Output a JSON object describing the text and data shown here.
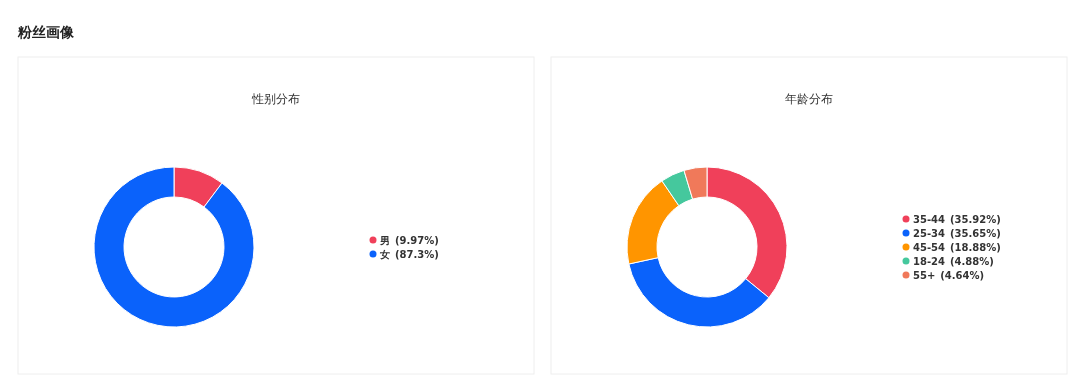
{
  "chart_data": [
    {
      "type": "other",
      "title": "粉丝画像"
    },
    {
      "type": "donut",
      "title": "性别分布",
      "categories": [
        "男",
        "女"
      ],
      "values": [
        9.97,
        87.3
      ],
      "value_labels": [
        "(9.97%)",
        "(87.3%)"
      ],
      "colors": [
        "#f0405a",
        "#0a62fb"
      ],
      "legend": "right"
    },
    {
      "type": "donut",
      "title": "年龄分布",
      "categories": [
        "35-44",
        "25-34",
        "45-54",
        "18-24",
        "55+"
      ],
      "values": [
        35.92,
        35.65,
        18.88,
        4.88,
        4.64
      ],
      "value_labels": [
        "(35.92%)",
        "(35.65%)",
        "(18.88%)",
        "(4.88%)",
        "(4.64%)"
      ],
      "colors": [
        "#f0405a",
        "#0a62fb",
        "#ff9500",
        "#45c89d",
        "#f0795a"
      ],
      "legend": "right"
    }
  ]
}
